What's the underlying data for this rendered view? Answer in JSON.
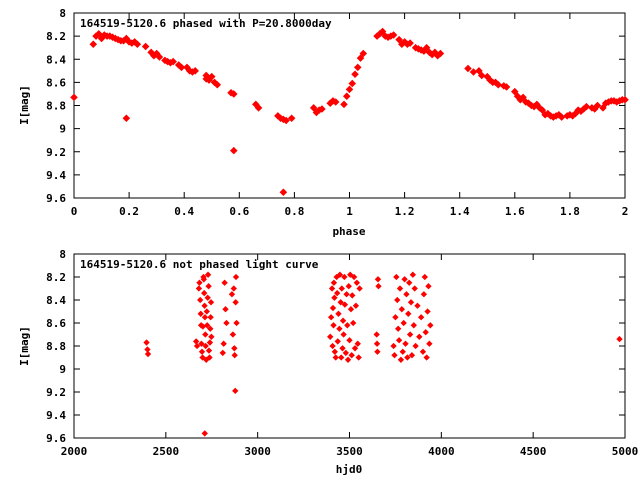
{
  "chart_data": [
    {
      "type": "scatter",
      "title": "164519-5120.6 phased with P=20.8000day",
      "xlabel": "phase",
      "ylabel": "I[mag]",
      "xlim": [
        0,
        2
      ],
      "ylim": [
        8,
        9.6
      ],
      "y_inverted": true,
      "xticks": [
        0,
        0.2,
        0.4,
        0.6,
        0.8,
        1,
        1.2,
        1.4,
        1.6,
        1.8,
        2
      ],
      "xtick_labels": [
        "0",
        "0.2",
        "0.4",
        "0.6",
        "0.8",
        "1",
        "1.2",
        "1.4",
        "1.6",
        "1.8",
        "2"
      ],
      "yticks": [
        8,
        8.2,
        8.4,
        8.6,
        8.8,
        9,
        9.2,
        9.4,
        9.6
      ],
      "ytick_labels": [
        "8",
        "8.2",
        "8.4",
        "8.6",
        "8.8",
        "9",
        "9.2",
        "9.4",
        "9.6"
      ],
      "marker_color": "#ff0000",
      "marker": "diamond",
      "points": [
        [
          0.0,
          8.73
        ],
        [
          0.07,
          8.27
        ],
        [
          0.08,
          8.2
        ],
        [
          0.09,
          8.18
        ],
        [
          0.1,
          8.22
        ],
        [
          0.11,
          8.19
        ],
        [
          0.12,
          8.2
        ],
        [
          0.13,
          8.2
        ],
        [
          0.14,
          8.21
        ],
        [
          0.15,
          8.22
        ],
        [
          0.16,
          8.23
        ],
        [
          0.17,
          8.24
        ],
        [
          0.18,
          8.24
        ],
        [
          0.19,
          8.22
        ],
        [
          0.19,
          8.91
        ],
        [
          0.2,
          8.25
        ],
        [
          0.21,
          8.26
        ],
        [
          0.22,
          8.25
        ],
        [
          0.23,
          8.27
        ],
        [
          0.26,
          8.29
        ],
        [
          0.28,
          8.34
        ],
        [
          0.29,
          8.37
        ],
        [
          0.3,
          8.35
        ],
        [
          0.31,
          8.38
        ],
        [
          0.33,
          8.41
        ],
        [
          0.34,
          8.42
        ],
        [
          0.35,
          8.43
        ],
        [
          0.36,
          8.42
        ],
        [
          0.38,
          8.45
        ],
        [
          0.39,
          8.47
        ],
        [
          0.41,
          8.47
        ],
        [
          0.42,
          8.5
        ],
        [
          0.43,
          8.51
        ],
        [
          0.44,
          8.5
        ],
        [
          0.48,
          8.54
        ],
        [
          0.48,
          8.57
        ],
        [
          0.49,
          8.58
        ],
        [
          0.5,
          8.55
        ],
        [
          0.51,
          8.6
        ],
        [
          0.52,
          8.62
        ],
        [
          0.57,
          8.69
        ],
        [
          0.58,
          8.7
        ],
        [
          0.58,
          9.19
        ],
        [
          0.66,
          8.79
        ],
        [
          0.67,
          8.82
        ],
        [
          0.74,
          8.89
        ],
        [
          0.75,
          8.91
        ],
        [
          0.76,
          8.92
        ],
        [
          0.77,
          8.93
        ],
        [
          0.76,
          9.55
        ],
        [
          0.79,
          8.91
        ],
        [
          0.87,
          8.82
        ],
        [
          0.88,
          8.86
        ],
        [
          0.89,
          8.84
        ],
        [
          0.9,
          8.83
        ],
        [
          0.93,
          8.78
        ],
        [
          0.94,
          8.76
        ],
        [
          0.95,
          8.77
        ],
        [
          0.98,
          8.79
        ],
        [
          0.99,
          8.72
        ],
        [
          1.0,
          8.66
        ],
        [
          1.01,
          8.61
        ],
        [
          1.02,
          8.53
        ],
        [
          1.03,
          8.47
        ],
        [
          1.04,
          8.39
        ],
        [
          1.05,
          8.35
        ],
        [
          1.1,
          8.2
        ],
        [
          1.11,
          8.18
        ],
        [
          1.12,
          8.16
        ],
        [
          1.13,
          8.2
        ],
        [
          1.14,
          8.21
        ],
        [
          1.15,
          8.2
        ],
        [
          1.16,
          8.19
        ],
        [
          1.18,
          8.23
        ],
        [
          1.19,
          8.27
        ],
        [
          1.2,
          8.25
        ],
        [
          1.21,
          8.27
        ],
        [
          1.22,
          8.26
        ],
        [
          1.24,
          8.3
        ],
        [
          1.25,
          8.31
        ],
        [
          1.26,
          8.32
        ],
        [
          1.27,
          8.33
        ],
        [
          1.28,
          8.3
        ],
        [
          1.29,
          8.34
        ],
        [
          1.3,
          8.36
        ],
        [
          1.31,
          8.34
        ],
        [
          1.32,
          8.37
        ],
        [
          1.33,
          8.35
        ],
        [
          1.43,
          8.48
        ],
        [
          1.45,
          8.51
        ],
        [
          1.47,
          8.5
        ],
        [
          1.48,
          8.54
        ],
        [
          1.5,
          8.55
        ],
        [
          1.51,
          8.58
        ],
        [
          1.52,
          8.6
        ],
        [
          1.53,
          8.6
        ],
        [
          1.54,
          8.62
        ],
        [
          1.56,
          8.63
        ],
        [
          1.57,
          8.64
        ],
        [
          1.6,
          8.68
        ],
        [
          1.61,
          8.72
        ],
        [
          1.62,
          8.75
        ],
        [
          1.63,
          8.73
        ],
        [
          1.64,
          8.77
        ],
        [
          1.65,
          8.78
        ],
        [
          1.66,
          8.8
        ],
        [
          1.67,
          8.81
        ],
        [
          1.68,
          8.79
        ],
        [
          1.69,
          8.82
        ],
        [
          1.7,
          8.84
        ],
        [
          1.71,
          8.88
        ],
        [
          1.72,
          8.87
        ],
        [
          1.73,
          8.89
        ],
        [
          1.74,
          8.9
        ],
        [
          1.75,
          8.89
        ],
        [
          1.76,
          8.88
        ],
        [
          1.77,
          8.9
        ],
        [
          1.79,
          8.89
        ],
        [
          1.8,
          8.88
        ],
        [
          1.81,
          8.89
        ],
        [
          1.82,
          8.87
        ],
        [
          1.83,
          8.84
        ],
        [
          1.84,
          8.85
        ],
        [
          1.85,
          8.83
        ],
        [
          1.86,
          8.81
        ],
        [
          1.88,
          8.82
        ],
        [
          1.89,
          8.83
        ],
        [
          1.9,
          8.8
        ],
        [
          1.92,
          8.82
        ],
        [
          1.93,
          8.78
        ],
        [
          1.94,
          8.77
        ],
        [
          1.95,
          8.76
        ],
        [
          1.96,
          8.76
        ],
        [
          1.97,
          8.77
        ],
        [
          1.98,
          8.76
        ],
        [
          1.99,
          8.75
        ],
        [
          2.0,
          8.75
        ]
      ]
    },
    {
      "type": "scatter",
      "title": "164519-5120.6 not phased light curve",
      "xlabel": "hjd0",
      "ylabel": "I[mag]",
      "xlim": [
        2000,
        5000
      ],
      "ylim": [
        8,
        9.6
      ],
      "y_inverted": true,
      "xticks": [
        2000,
        2500,
        3000,
        3500,
        4000,
        4500,
        5000
      ],
      "xtick_labels": [
        "2000",
        "2500",
        "3000",
        "3500",
        "4000",
        "4500",
        "5000"
      ],
      "yticks": [
        8,
        8.2,
        8.4,
        8.6,
        8.8,
        9,
        9.2,
        9.4,
        9.6
      ],
      "ytick_labels": [
        "8",
        "8.2",
        "8.4",
        "8.6",
        "8.8",
        "9",
        "9.2",
        "9.4",
        "9.6"
      ],
      "marker_color": "#ff0000",
      "marker": "diamond",
      "points": [
        [
          2395,
          8.77
        ],
        [
          2400,
          8.83
        ],
        [
          2403,
          8.87
        ],
        [
          2665,
          8.76
        ],
        [
          2670,
          8.8
        ],
        [
          2680,
          8.3
        ],
        [
          2683,
          8.25
        ],
        [
          2687,
          8.4
        ],
        [
          2690,
          8.52
        ],
        [
          2692,
          8.62
        ],
        [
          2694,
          8.78
        ],
        [
          2697,
          8.85
        ],
        [
          2700,
          8.9
        ],
        [
          2702,
          8.63
        ],
        [
          2705,
          8.2
        ],
        [
          2707,
          8.22
        ],
        [
          2709,
          8.34
        ],
        [
          2711,
          8.45
        ],
        [
          2713,
          8.55
        ],
        [
          2715,
          8.7
        ],
        [
          2717,
          8.8
        ],
        [
          2712,
          9.56
        ],
        [
          2720,
          8.92
        ],
        [
          2723,
          8.5
        ],
        [
          2725,
          8.62
        ],
        [
          2728,
          8.38
        ],
        [
          2730,
          8.18
        ],
        [
          2733,
          8.28
        ],
        [
          2735,
          8.84
        ],
        [
          2738,
          8.9
        ],
        [
          2740,
          8.77
        ],
        [
          2742,
          8.65
        ],
        [
          2744,
          8.55
        ],
        [
          2746,
          8.42
        ],
        [
          2748,
          8.72
        ],
        [
          2810,
          8.86
        ],
        [
          2815,
          8.78
        ],
        [
          2820,
          8.25
        ],
        [
          2825,
          8.48
        ],
        [
          2830,
          8.6
        ],
        [
          2860,
          8.35
        ],
        [
          2865,
          8.7
        ],
        [
          2870,
          8.3
        ],
        [
          2873,
          8.82
        ],
        [
          2875,
          8.88
        ],
        [
          2878,
          9.19
        ],
        [
          2880,
          8.42
        ],
        [
          2882,
          8.2
        ],
        [
          2885,
          8.6
        ],
        [
          3395,
          8.72
        ],
        [
          3400,
          8.55
        ],
        [
          3405,
          8.3
        ],
        [
          3408,
          8.8
        ],
        [
          3410,
          8.47
        ],
        [
          3413,
          8.62
        ],
        [
          3415,
          8.25
        ],
        [
          3418,
          8.38
        ],
        [
          3420,
          8.85
        ],
        [
          3425,
          8.9
        ],
        [
          3430,
          8.2
        ],
        [
          3433,
          8.34
        ],
        [
          3436,
          8.76
        ],
        [
          3440,
          8.52
        ],
        [
          3445,
          8.65
        ],
        [
          3448,
          8.18
        ],
        [
          3452,
          8.42
        ],
        [
          3455,
          8.9
        ],
        [
          3458,
          8.3
        ],
        [
          3462,
          8.82
        ],
        [
          3465,
          8.58
        ],
        [
          3468,
          8.7
        ],
        [
          3472,
          8.2
        ],
        [
          3475,
          8.44
        ],
        [
          3480,
          8.86
        ],
        [
          3484,
          8.35
        ],
        [
          3488,
          8.62
        ],
        [
          3492,
          8.92
        ],
        [
          3496,
          8.28
        ],
        [
          3500,
          8.75
        ],
        [
          3504,
          8.18
        ],
        [
          3508,
          8.48
        ],
        [
          3512,
          8.88
        ],
        [
          3515,
          8.36
        ],
        [
          3520,
          8.6
        ],
        [
          3525,
          8.2
        ],
        [
          3530,
          8.82
        ],
        [
          3535,
          8.45
        ],
        [
          3540,
          8.25
        ],
        [
          3545,
          8.78
        ],
        [
          3550,
          8.9
        ],
        [
          3555,
          8.3
        ],
        [
          3648,
          8.7
        ],
        [
          3650,
          8.78
        ],
        [
          3652,
          8.85
        ],
        [
          3655,
          8.22
        ],
        [
          3658,
          8.28
        ],
        [
          3740,
          8.8
        ],
        [
          3745,
          8.88
        ],
        [
          3750,
          8.55
        ],
        [
          3755,
          8.2
        ],
        [
          3760,
          8.4
        ],
        [
          3765,
          8.65
        ],
        [
          3770,
          8.75
        ],
        [
          3775,
          8.3
        ],
        [
          3780,
          8.92
        ],
        [
          3785,
          8.48
        ],
        [
          3790,
          8.85
        ],
        [
          3795,
          8.6
        ],
        [
          3800,
          8.22
        ],
        [
          3805,
          8.78
        ],
        [
          3810,
          8.35
        ],
        [
          3815,
          8.9
        ],
        [
          3820,
          8.52
        ],
        [
          3825,
          8.25
        ],
        [
          3830,
          8.7
        ],
        [
          3835,
          8.42
        ],
        [
          3840,
          8.88
        ],
        [
          3845,
          8.18
        ],
        [
          3850,
          8.62
        ],
        [
          3855,
          8.3
        ],
        [
          3860,
          8.8
        ],
        [
          3870,
          8.45
        ],
        [
          3880,
          8.72
        ],
        [
          3890,
          8.55
        ],
        [
          3900,
          8.85
        ],
        [
          3905,
          8.35
        ],
        [
          3910,
          8.2
        ],
        [
          3915,
          8.68
        ],
        [
          3920,
          8.9
        ],
        [
          3925,
          8.5
        ],
        [
          3930,
          8.28
        ],
        [
          3935,
          8.78
        ],
        [
          3940,
          8.62
        ],
        [
          4970,
          8.74
        ]
      ]
    }
  ]
}
